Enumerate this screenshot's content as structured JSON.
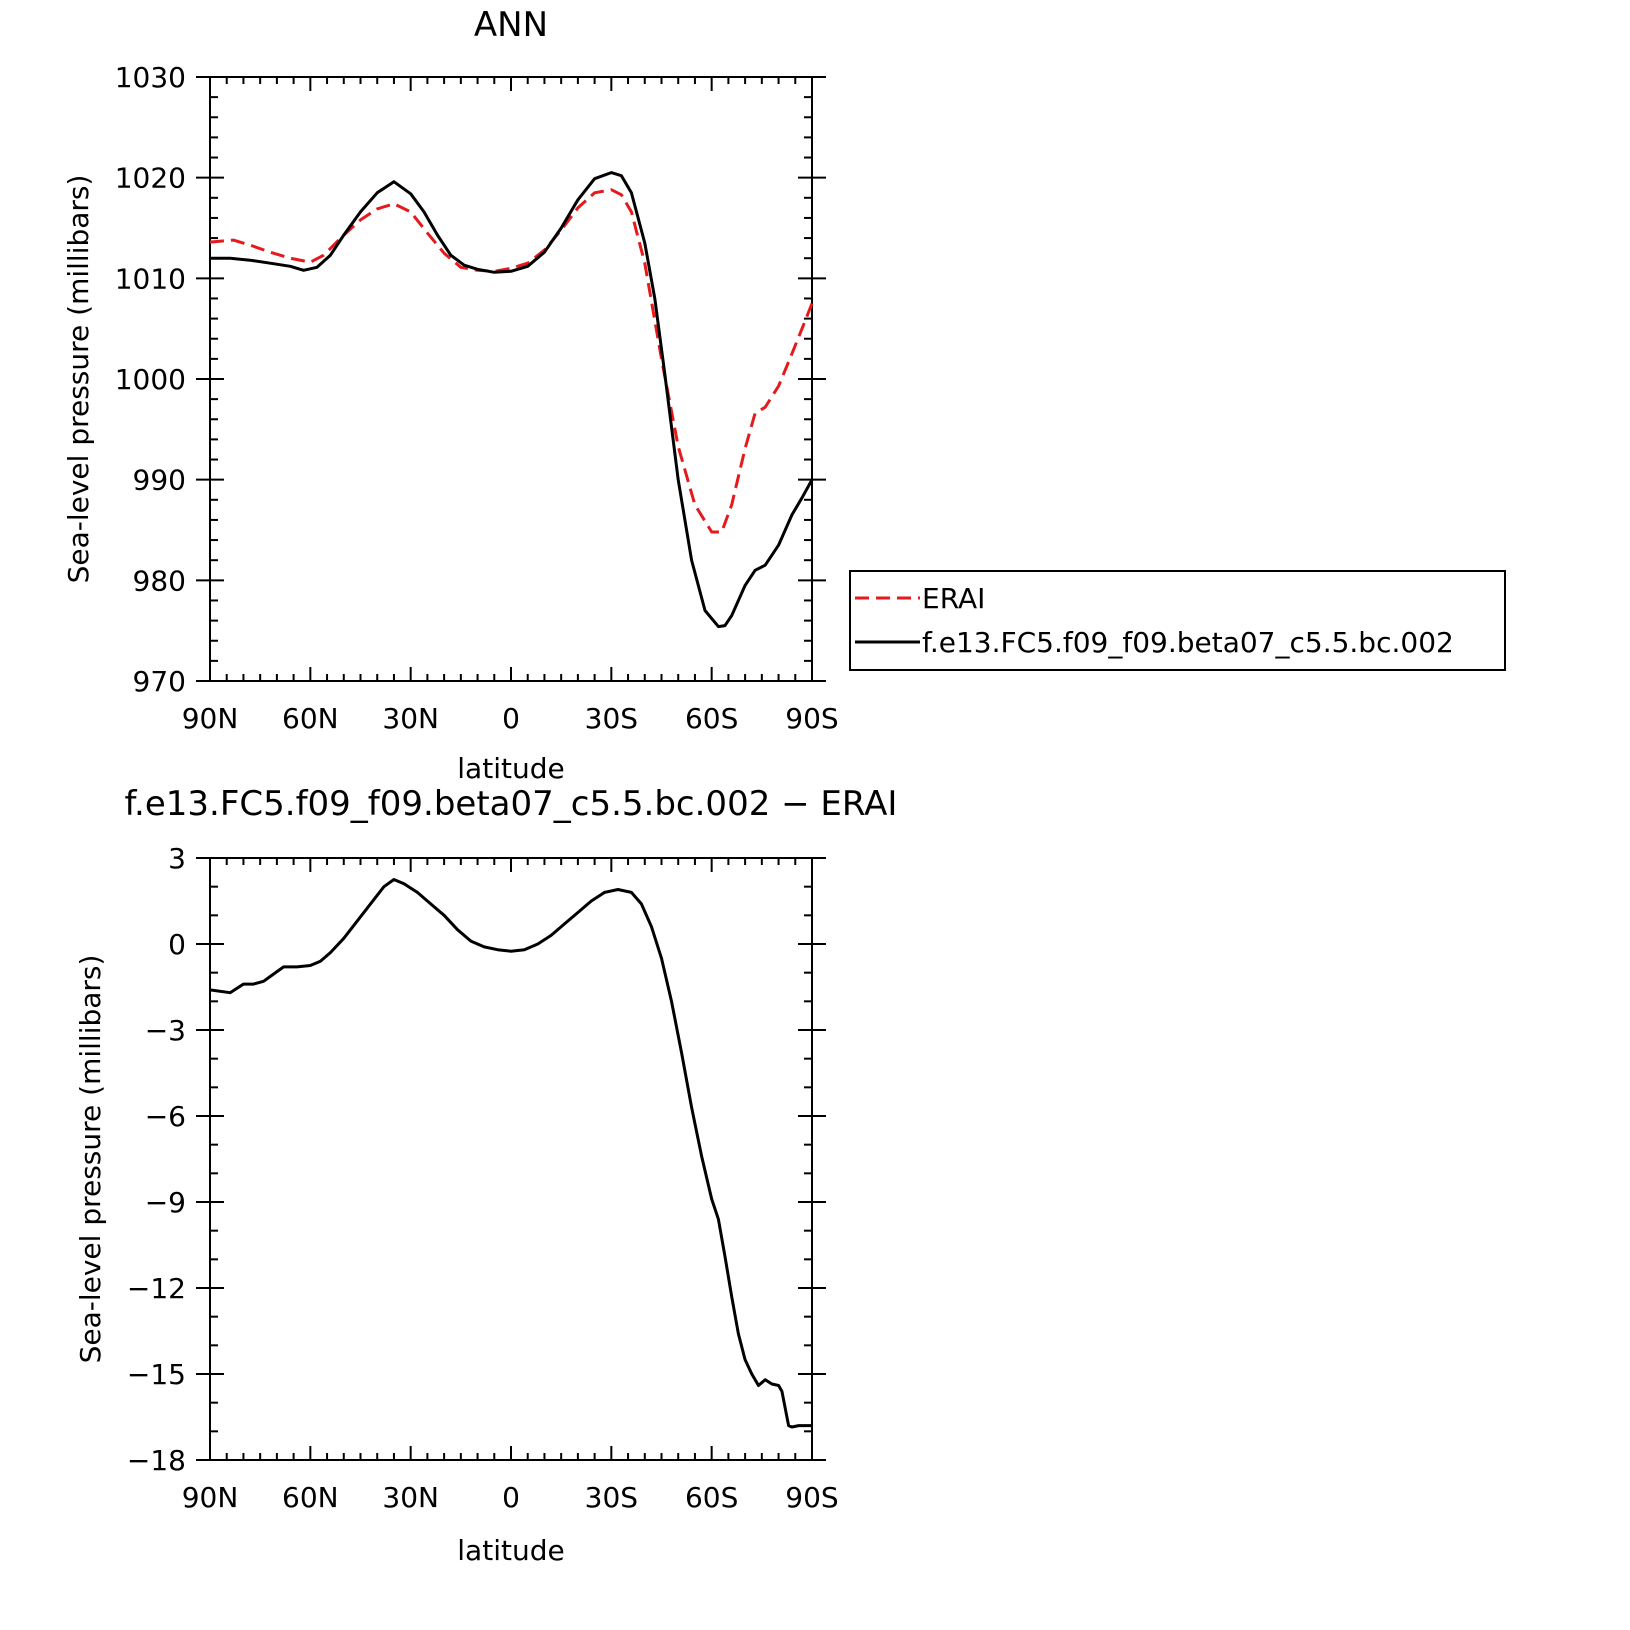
{
  "chart_data": [
    {
      "type": "line",
      "title": "ANN",
      "xlabel": "latitude",
      "ylabel": "Sea-level pressure (millibars)",
      "x_ticks": [
        -90,
        -60,
        -30,
        0,
        30,
        60,
        90
      ],
      "x_tick_labels": [
        "90N",
        "60N",
        "30N",
        "0",
        "30S",
        "60S",
        "90S"
      ],
      "xlim": [
        -90,
        90
      ],
      "ylim": [
        970,
        1030
      ],
      "y_ticks": [
        970,
        980,
        990,
        1000,
        1010,
        1020,
        1030
      ],
      "y_tick_labels": [
        "970",
        "980",
        "990",
        "1000",
        "1010",
        "1020",
        "1030"
      ],
      "grid": false,
      "legend_position": "right",
      "series": [
        {
          "name": "ERAI",
          "color": "#e41a1c",
          "style": "dashed",
          "x": [
            -90,
            -83,
            -78,
            -72,
            -66,
            -60,
            -56,
            -50,
            -45,
            -40,
            -35,
            -30,
            -25,
            -20,
            -15,
            -10,
            -5,
            0,
            5,
            10,
            15,
            20,
            25,
            30,
            33,
            36,
            40,
            45,
            50,
            55,
            60,
            63,
            66,
            68,
            70,
            73,
            76,
            80,
            84,
            87,
            90
          ],
          "y": [
            1013.6,
            1013.8,
            1013.3,
            1012.6,
            1012.0,
            1011.6,
            1012.3,
            1014.3,
            1015.8,
            1016.9,
            1017.4,
            1016.6,
            1014.5,
            1012.5,
            1011.1,
            1010.8,
            1010.7,
            1011.0,
            1011.5,
            1012.8,
            1014.8,
            1017.0,
            1018.5,
            1018.8,
            1018.3,
            1016.6,
            1011.5,
            1002.0,
            993.3,
            987.5,
            984.8,
            984.8,
            987.5,
            990.3,
            993.1,
            996.6,
            997.2,
            999.3,
            1002.5,
            1005.0,
            1007.5
          ]
        },
        {
          "name": "f.e13.FC5.f09_f09.beta07_c5.5.bc.002",
          "color": "#000000",
          "style": "solid",
          "x": [
            -90,
            -84,
            -78,
            -72,
            -66,
            -62,
            -58,
            -54,
            -50,
            -45,
            -40,
            -35,
            -30,
            -26,
            -22,
            -18,
            -14,
            -10,
            -5,
            0,
            5,
            10,
            15,
            20,
            25,
            30,
            33,
            36,
            38,
            40,
            43,
            46,
            50,
            54,
            58,
            62,
            64,
            66,
            68,
            70,
            73,
            76,
            80,
            84,
            87,
            90
          ],
          "y": [
            1012.0,
            1012.0,
            1011.8,
            1011.5,
            1011.2,
            1010.8,
            1011.1,
            1012.3,
            1014.3,
            1016.6,
            1018.5,
            1019.6,
            1018.4,
            1016.6,
            1014.3,
            1012.3,
            1011.3,
            1010.9,
            1010.6,
            1010.7,
            1011.2,
            1012.6,
            1015.0,
            1017.8,
            1019.9,
            1020.5,
            1020.2,
            1018.5,
            1016.0,
            1013.5,
            1008.0,
            1000.5,
            990.0,
            982.0,
            977.0,
            975.4,
            975.5,
            976.5,
            978.0,
            979.5,
            981.0,
            981.5,
            983.5,
            986.5,
            988.2,
            990.0
          ]
        }
      ]
    },
    {
      "type": "line",
      "title": "f.e13.FC5.f09_f09.beta07_c5.5.bc.002 − ERAI",
      "xlabel": "latitude",
      "ylabel": "Sea-level pressure (millibars)",
      "x_ticks": [
        -90,
        -60,
        -30,
        0,
        30,
        60,
        90
      ],
      "x_tick_labels": [
        "90N",
        "60N",
        "30N",
        "0",
        "30S",
        "60S",
        "90S"
      ],
      "xlim": [
        -90,
        90
      ],
      "ylim": [
        -18,
        3
      ],
      "y_ticks": [
        -18,
        -15,
        -12,
        -9,
        -6,
        -3,
        0,
        3
      ],
      "y_tick_labels": [
        "−18",
        "−15",
        "−12",
        "−9",
        "−6",
        "−3",
        "0",
        "3"
      ],
      "grid": false,
      "series": [
        {
          "color": "#000000",
          "style": "solid",
          "x": [
            -90,
            -84,
            -80,
            -77,
            -74,
            -71,
            -68,
            -64,
            -60,
            -57,
            -54,
            -50,
            -46,
            -42,
            -38,
            -35,
            -32,
            -28,
            -24,
            -20,
            -16,
            -12,
            -8,
            -4,
            0,
            4,
            8,
            12,
            16,
            20,
            24,
            28,
            32,
            36,
            39,
            42,
            45,
            48,
            51,
            54,
            57,
            60,
            62,
            64,
            66,
            68,
            70,
            72,
            74,
            76,
            78,
            80,
            81,
            83,
            84,
            86,
            87,
            89,
            90
          ],
          "y": [
            -1.6,
            -1.7,
            -1.4,
            -1.4,
            -1.3,
            -1.05,
            -0.8,
            -0.8,
            -0.75,
            -0.6,
            -0.3,
            0.2,
            0.8,
            1.4,
            2.0,
            2.25,
            2.1,
            1.8,
            1.4,
            1.0,
            0.5,
            0.1,
            -0.1,
            -0.2,
            -0.25,
            -0.2,
            0.0,
            0.3,
            0.7,
            1.1,
            1.5,
            1.8,
            1.9,
            1.8,
            1.4,
            0.6,
            -0.5,
            -2.0,
            -3.8,
            -5.7,
            -7.4,
            -8.9,
            -9.6,
            -10.9,
            -12.3,
            -13.6,
            -14.5,
            -15.0,
            -15.4,
            -15.2,
            -15.35,
            -15.4,
            -15.6,
            -16.8,
            -16.85,
            -16.8,
            -16.8,
            -16.8,
            -16.8
          ]
        }
      ]
    }
  ]
}
